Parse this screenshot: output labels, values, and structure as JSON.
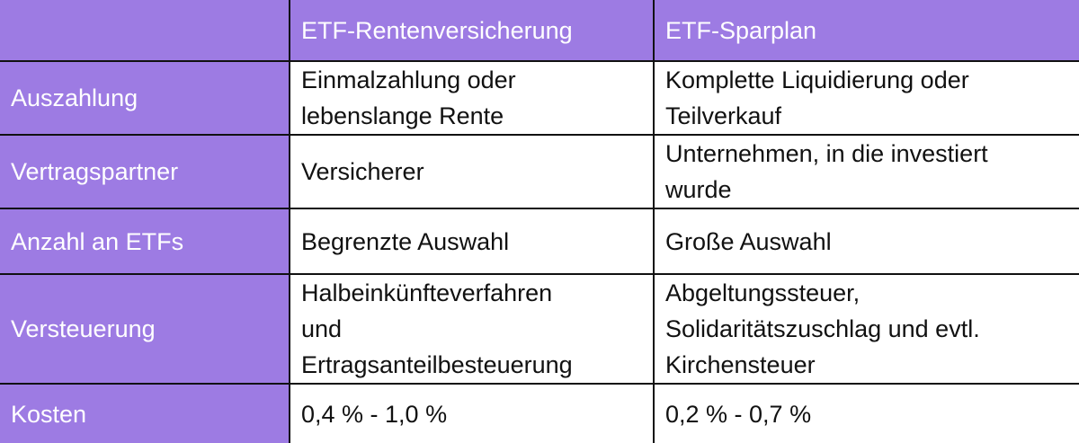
{
  "table": {
    "header": [
      "ETF-Rentenversicherung",
      "ETF-Sparplan"
    ],
    "rows": [
      {
        "label": "Auszahlung",
        "cells": [
          [
            "Einmalzahlung oder",
            "lebenslange Rente"
          ],
          [
            "Komplette Liquidierung oder",
            "Teilverkauf"
          ]
        ]
      },
      {
        "label": "Vertragspartner",
        "cells": [
          [
            "Versicherer"
          ],
          [
            "Unternehmen, in die investiert",
            "wurde"
          ]
        ]
      },
      {
        "label": "Anzahl an ETFs",
        "cells": [
          [
            "Begrenzte Auswahl"
          ],
          [
            "Große Auswahl"
          ]
        ]
      },
      {
        "label": "Versteuerung",
        "cells": [
          [
            "Halbeinkünfteverfahren",
            "und",
            "Ertragsanteilbesteuerung"
          ],
          [
            "Abgeltungssteuer,",
            "Solidaritätszuschlag und evtl.",
            "Kirchensteuer"
          ]
        ]
      },
      {
        "label": "Kosten",
        "cells": [
          [
            "0,4 % - 1,0 %"
          ],
          [
            "0,2 % - 0,7 %"
          ]
        ]
      }
    ]
  }
}
